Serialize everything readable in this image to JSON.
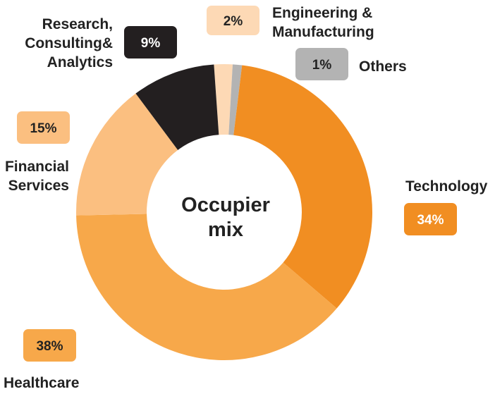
{
  "chart_data": {
    "type": "pie",
    "variant": "donut",
    "center_label": [
      "Occupier",
      "mix"
    ],
    "slices": [
      {
        "label": [
          "Engineering &",
          "Manufacturing"
        ],
        "value": 2,
        "value_label": "2%",
        "color": "#fdd9b5",
        "badge_text_color": "#222222"
      },
      {
        "label": [
          "Others"
        ],
        "value": 1,
        "value_label": "1%",
        "color": "#b3b3b3",
        "badge_text_color": "#222222"
      },
      {
        "label": [
          "Technology"
        ],
        "value": 34,
        "value_label": "34%",
        "color": "#f18e22",
        "badge_text_color": "#ffffff"
      },
      {
        "label": [
          "Healthcare"
        ],
        "value": 38,
        "value_label": "38%",
        "color": "#f7a84a",
        "badge_text_color": "#222222"
      },
      {
        "label": [
          "Financial",
          "Services"
        ],
        "value": 15,
        "value_label": "15%",
        "color": "#fbbf80",
        "badge_text_color": "#222222"
      },
      {
        "label": [
          "Research,",
          "Consulting&",
          "Analytics"
        ],
        "value": 9,
        "value_label": "9%",
        "color": "#231f20",
        "badge_text_color": "#ffffff"
      }
    ],
    "legend": "none"
  }
}
